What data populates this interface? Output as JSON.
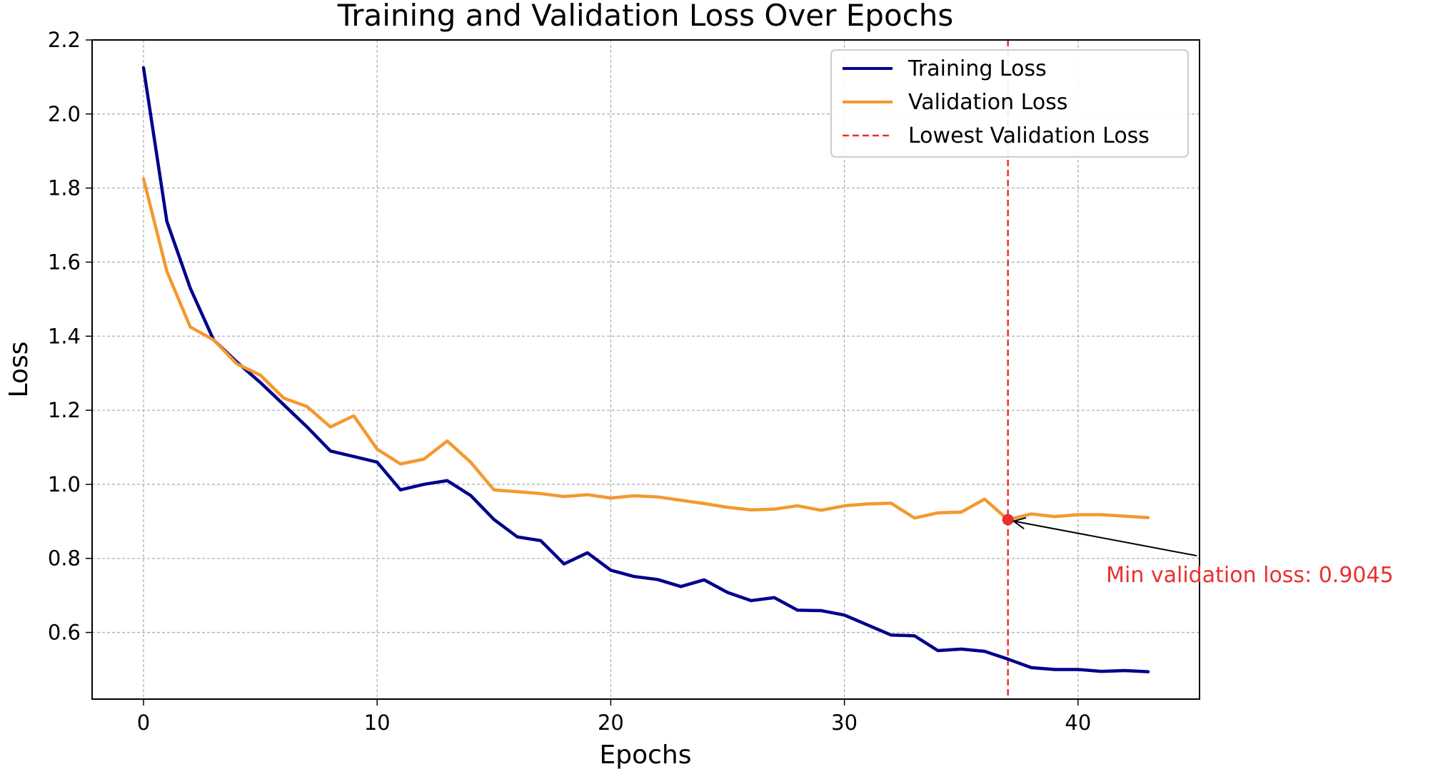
{
  "chart_data": {
    "type": "line",
    "title": "Training and Validation Loss Over Epochs",
    "xlabel": "Epochs",
    "ylabel": "Loss",
    "xlim": [
      -2.2,
      45.2
    ],
    "ylim": [
      0.42,
      2.2
    ],
    "xticks": [
      0,
      10,
      20,
      30,
      40
    ],
    "yticks": [
      0.6,
      0.8,
      1.0,
      1.2,
      1.4,
      1.6,
      1.8,
      2.0,
      2.2
    ],
    "grid": true,
    "legend_position": "top-right",
    "x": [
      0,
      1,
      2,
      3,
      4,
      5,
      6,
      7,
      8,
      9,
      10,
      11,
      12,
      13,
      14,
      15,
      16,
      17,
      18,
      19,
      20,
      21,
      22,
      23,
      24,
      25,
      26,
      27,
      28,
      29,
      30,
      31,
      32,
      33,
      34,
      35,
      36,
      37,
      38,
      39,
      40,
      41,
      42,
      43
    ],
    "series": [
      {
        "name": "Training Loss",
        "color": "#00008b",
        "values": [
          2.125,
          1.71,
          1.53,
          1.39,
          1.33,
          1.275,
          1.215,
          1.155,
          1.09,
          1.075,
          1.06,
          0.985,
          1.0,
          1.01,
          0.97,
          0.905,
          0.858,
          0.848,
          0.785,
          0.815,
          0.768,
          0.751,
          0.743,
          0.724,
          0.742,
          0.708,
          0.686,
          0.694,
          0.66,
          0.659,
          0.647,
          0.62,
          0.593,
          0.591,
          0.551,
          0.555,
          0.549,
          0.528,
          0.505,
          0.5,
          0.5,
          0.495,
          0.497,
          0.494
        ]
      },
      {
        "name": "Validation Loss",
        "color": "#f4982f",
        "values": [
          1.825,
          1.575,
          1.425,
          1.39,
          1.325,
          1.295,
          1.233,
          1.21,
          1.155,
          1.185,
          1.095,
          1.055,
          1.068,
          1.117,
          1.06,
          0.985,
          0.98,
          0.975,
          0.967,
          0.972,
          0.963,
          0.969,
          0.966,
          0.957,
          0.948,
          0.938,
          0.931,
          0.933,
          0.942,
          0.93,
          0.942,
          0.947,
          0.949,
          0.909,
          0.923,
          0.925,
          0.96,
          0.9045,
          0.92,
          0.913,
          0.918,
          0.918,
          0.914,
          0.91
        ]
      }
    ],
    "reference_line": {
      "name": "Lowest Validation Loss",
      "x": 37,
      "color": "#e8312e"
    },
    "annotation": {
      "text": "Min validation loss: 0.9045",
      "x": 37,
      "y": 0.9045,
      "text_x": 41.2,
      "text_y": 0.755,
      "color": "#e8312e"
    }
  }
}
